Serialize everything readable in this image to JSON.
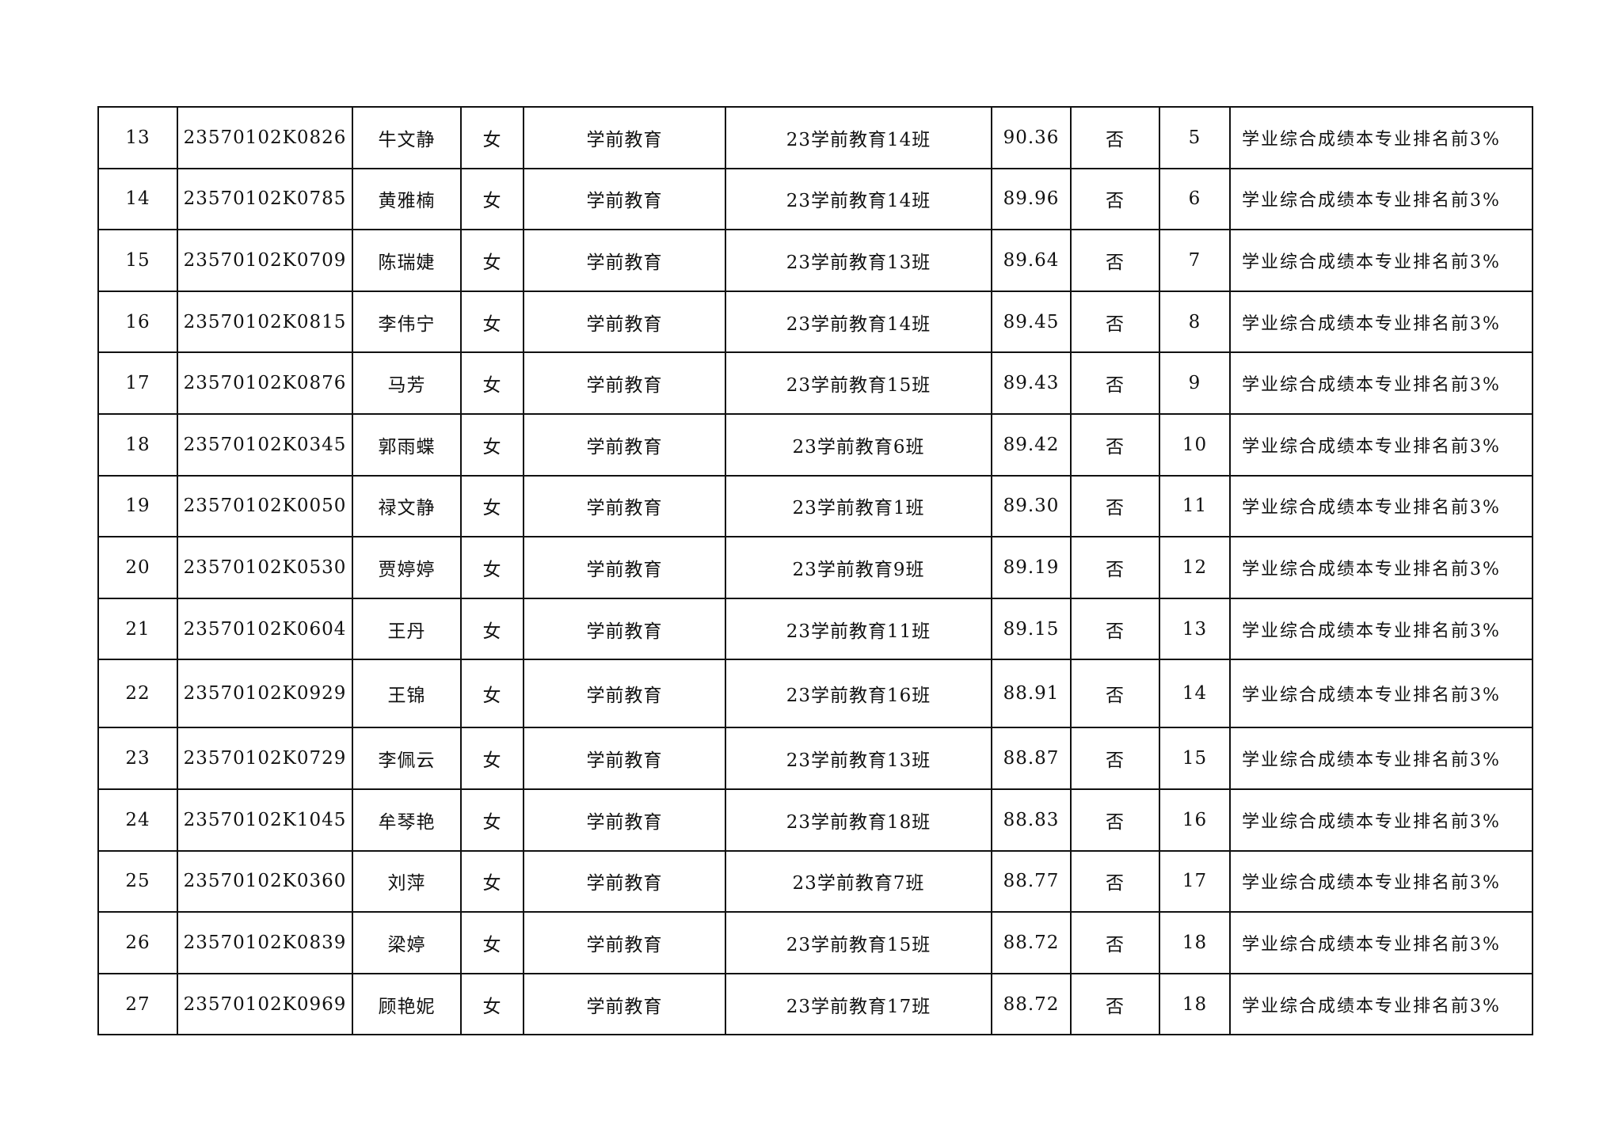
{
  "rows": [
    [
      "13",
      "23570102K0826",
      "牛文静",
      "女",
      "学前教育",
      "23学前教育14班",
      "90.36",
      "否",
      "5",
      "学业综合成绩本专业排名前3%"
    ],
    [
      "14",
      "23570102K0785",
      "黄雅楠",
      "女",
      "学前教育",
      "23学前教育14班",
      "89.96",
      "否",
      "6",
      "学业综合成绩本专业排名前3%"
    ],
    [
      "15",
      "23570102K0709",
      "陈瑞婕",
      "女",
      "学前教育",
      "23学前教育13班",
      "89.64",
      "否",
      "7",
      "学业综合成绩本专业排名前3%"
    ],
    [
      "16",
      "23570102K0815",
      "李伟宁",
      "女",
      "学前教育",
      "23学前教育14班",
      "89.45",
      "否",
      "8",
      "学业综合成绩本专业排名前3%"
    ],
    [
      "17",
      "23570102K0876",
      "马芳",
      "女",
      "学前教育",
      "23学前教育15班",
      "89.43",
      "否",
      "9",
      "学业综合成绩本专业排名前3%"
    ],
    [
      "18",
      "23570102K0345",
      "郭雨蝶",
      "女",
      "学前教育",
      "23学前教育6班",
      "89.42",
      "否",
      "10",
      "学业综合成绩本专业排名前3%"
    ],
    [
      "19",
      "23570102K0050",
      "禄文静",
      "女",
      "学前教育",
      "23学前教育1班",
      "89.30",
      "否",
      "11",
      "学业综合成绩本专业排名前3%"
    ],
    [
      "20",
      "23570102K0530",
      "贾婷婷",
      "女",
      "学前教育",
      "23学前教育9班",
      "89.19",
      "否",
      "12",
      "学业综合成绩本专业排名前3%"
    ],
    [
      "21",
      "23570102K0604",
      "王丹",
      "女",
      "学前教育",
      "23学前教育11班",
      "89.15",
      "否",
      "13",
      "学业综合成绩本专业排名前3%"
    ],
    [
      "22",
      "23570102K0929",
      "王锦",
      "女",
      "学前教育",
      "23学前教育16班",
      "88.91",
      "否",
      "14",
      "学业综合成绩本专业排名前3%"
    ],
    [
      "23",
      "23570102K0729",
      "李佩云",
      "女",
      "学前教育",
      "23学前教育13班",
      "88.87",
      "否",
      "15",
      "学业综合成绩本专业排名前3%"
    ],
    [
      "24",
      "23570102K1045",
      "牟琴艳",
      "女",
      "学前教育",
      "23学前教育18班",
      "88.83",
      "否",
      "16",
      "学业综合成绩本专业排名前3%"
    ],
    [
      "25",
      "23570102K0360",
      "刘萍",
      "女",
      "学前教育",
      "23学前教育7班",
      "88.77",
      "否",
      "17",
      "学业综合成绩本专业排名前3%"
    ],
    [
      "26",
      "23570102K0839",
      "梁婷",
      "女",
      "学前教育",
      "23学前教育15班",
      "88.72",
      "否",
      "18",
      "学业综合成绩本专业排名前3%"
    ],
    [
      "27",
      "23570102K0969",
      "顾艳妮",
      "女",
      "学前教育",
      "23学前教育17班",
      "88.72",
      "否",
      "18",
      "学业综合成绩本专业排名前3%"
    ]
  ]
}
